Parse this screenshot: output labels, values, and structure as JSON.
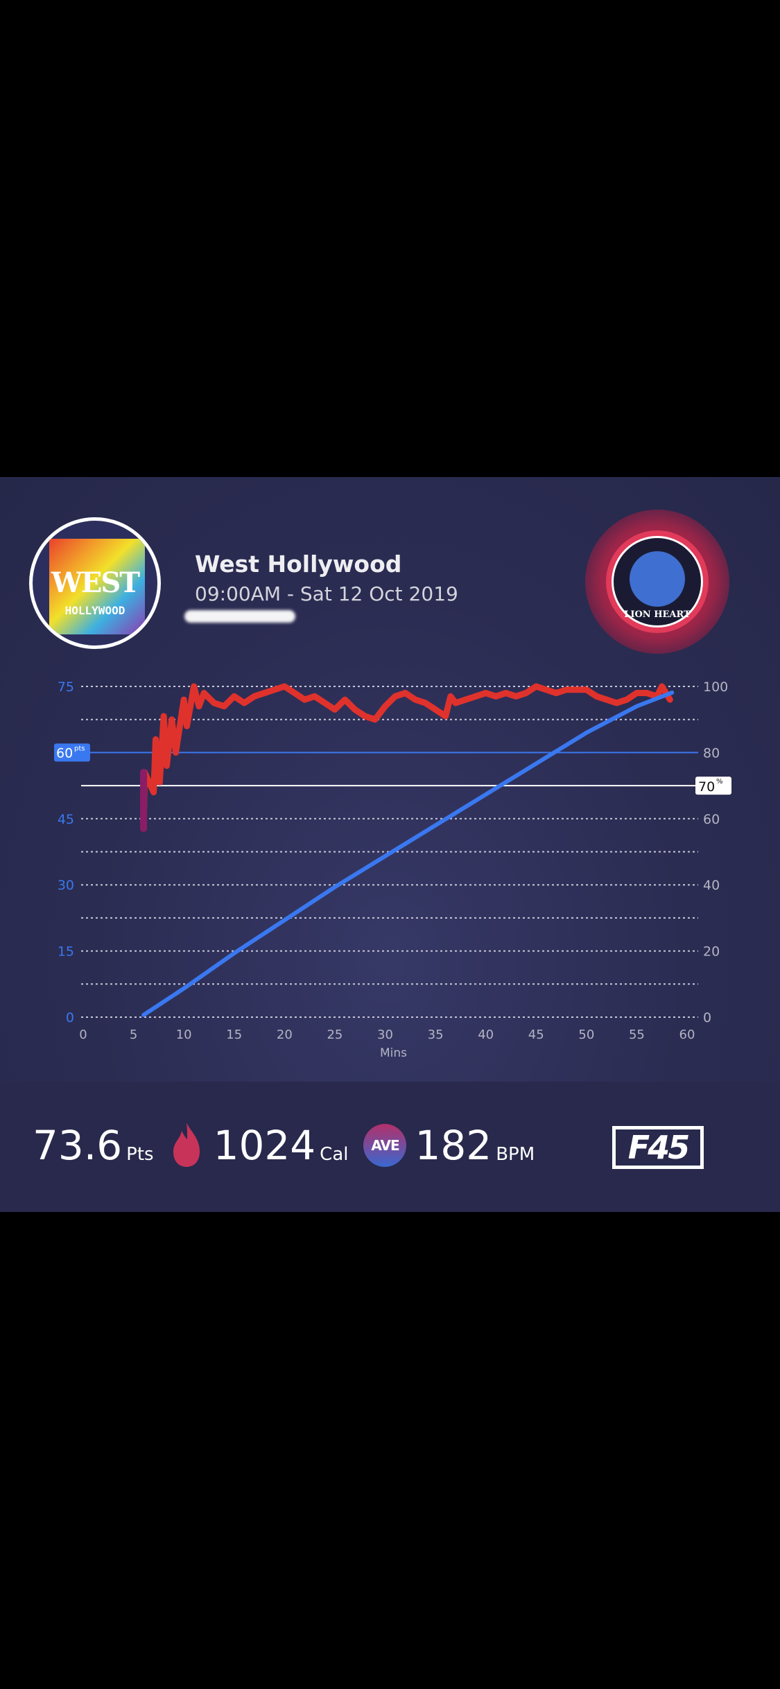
{
  "header": {
    "studio_logo_text": [
      "WEST",
      "HOLLYWOOD"
    ],
    "title": "West Hollywood",
    "datetime": "09:00AM - Sat 12 Oct 2019",
    "team_logo_text": "LION HEART"
  },
  "chart_data": {
    "type": "line",
    "xlabel": "Mins",
    "x_ticks": [
      "0",
      "5",
      "10",
      "15",
      "20",
      "25",
      "30",
      "35",
      "40",
      "45",
      "50",
      "55",
      "60"
    ],
    "xlim": [
      0,
      60
    ],
    "left_axis": {
      "ticks": [
        "0",
        "15",
        "30",
        "45",
        "60",
        "75"
      ],
      "ylim": [
        0,
        75
      ]
    },
    "right_axis": {
      "ticks": [
        "0",
        "20",
        "40",
        "60",
        "80",
        "100"
      ],
      "ylim": [
        0,
        100
      ]
    },
    "grid": true,
    "thresholds": {
      "points": {
        "value": 60,
        "label": "60",
        "unit": "pts",
        "color": "#3a78f0"
      },
      "heart_rate": {
        "value": 70,
        "label": "70",
        "unit": "%",
        "color": "#ffffff"
      }
    },
    "series": [
      {
        "axis": "left",
        "color": "#3a78f0",
        "points": [
          [
            6,
            0.5
          ],
          [
            10,
            6.5
          ],
          [
            15,
            14.5
          ],
          [
            20,
            22
          ],
          [
            25,
            29.5
          ],
          [
            30,
            36.5
          ],
          [
            35,
            43.5
          ],
          [
            40,
            50.5
          ],
          [
            45,
            57.5
          ],
          [
            50,
            64.5
          ],
          [
            55,
            70.5
          ],
          [
            58.5,
            73.6
          ]
        ]
      },
      {
        "axis": "right",
        "color": "#e0322c",
        "points": [
          [
            6,
            57
          ],
          [
            6.1,
            74
          ],
          [
            7,
            68
          ],
          [
            7.2,
            84
          ],
          [
            7.6,
            71
          ],
          [
            8,
            91
          ],
          [
            8.3,
            76
          ],
          [
            8.8,
            90
          ],
          [
            9.2,
            80
          ],
          [
            10,
            96
          ],
          [
            10.3,
            88
          ],
          [
            11,
            100
          ],
          [
            11.5,
            94
          ],
          [
            12,
            98
          ],
          [
            13,
            95
          ],
          [
            14,
            94
          ],
          [
            15,
            97
          ],
          [
            16,
            95
          ],
          [
            17,
            97
          ],
          [
            18,
            98
          ],
          [
            19,
            99
          ],
          [
            20,
            100
          ],
          [
            21,
            98
          ],
          [
            22,
            96
          ],
          [
            23,
            97
          ],
          [
            24,
            95
          ],
          [
            25,
            93
          ],
          [
            26,
            96
          ],
          [
            27,
            93
          ],
          [
            28,
            91
          ],
          [
            29,
            90
          ],
          [
            30,
            94
          ],
          [
            31,
            97
          ],
          [
            32,
            98
          ],
          [
            33,
            96
          ],
          [
            34,
            95
          ],
          [
            35,
            93
          ],
          [
            36,
            91
          ],
          [
            36.5,
            97
          ],
          [
            37,
            95
          ],
          [
            38,
            96
          ],
          [
            39,
            97
          ],
          [
            40,
            98
          ],
          [
            41,
            97
          ],
          [
            42,
            98
          ],
          [
            43,
            97
          ],
          [
            44,
            98
          ],
          [
            45,
            100
          ],
          [
            46,
            99
          ],
          [
            47,
            98
          ],
          [
            48,
            99
          ],
          [
            49,
            99
          ],
          [
            50,
            99
          ],
          [
            51,
            97
          ],
          [
            52,
            96
          ],
          [
            53,
            95
          ],
          [
            54,
            96
          ],
          [
            55,
            98
          ],
          [
            56,
            98
          ],
          [
            57,
            97
          ],
          [
            57.5,
            100
          ],
          [
            58.3,
            96
          ]
        ]
      }
    ]
  },
  "stats": {
    "points": {
      "value": "73.6",
      "unit": "Pts"
    },
    "calories": {
      "value": "1024",
      "unit": "Cal",
      "icon": "flame-icon",
      "color": "#c8335a"
    },
    "bpm": {
      "badge": "AVE",
      "value": "182",
      "unit": "BPM"
    },
    "brand_logo": "F45"
  }
}
